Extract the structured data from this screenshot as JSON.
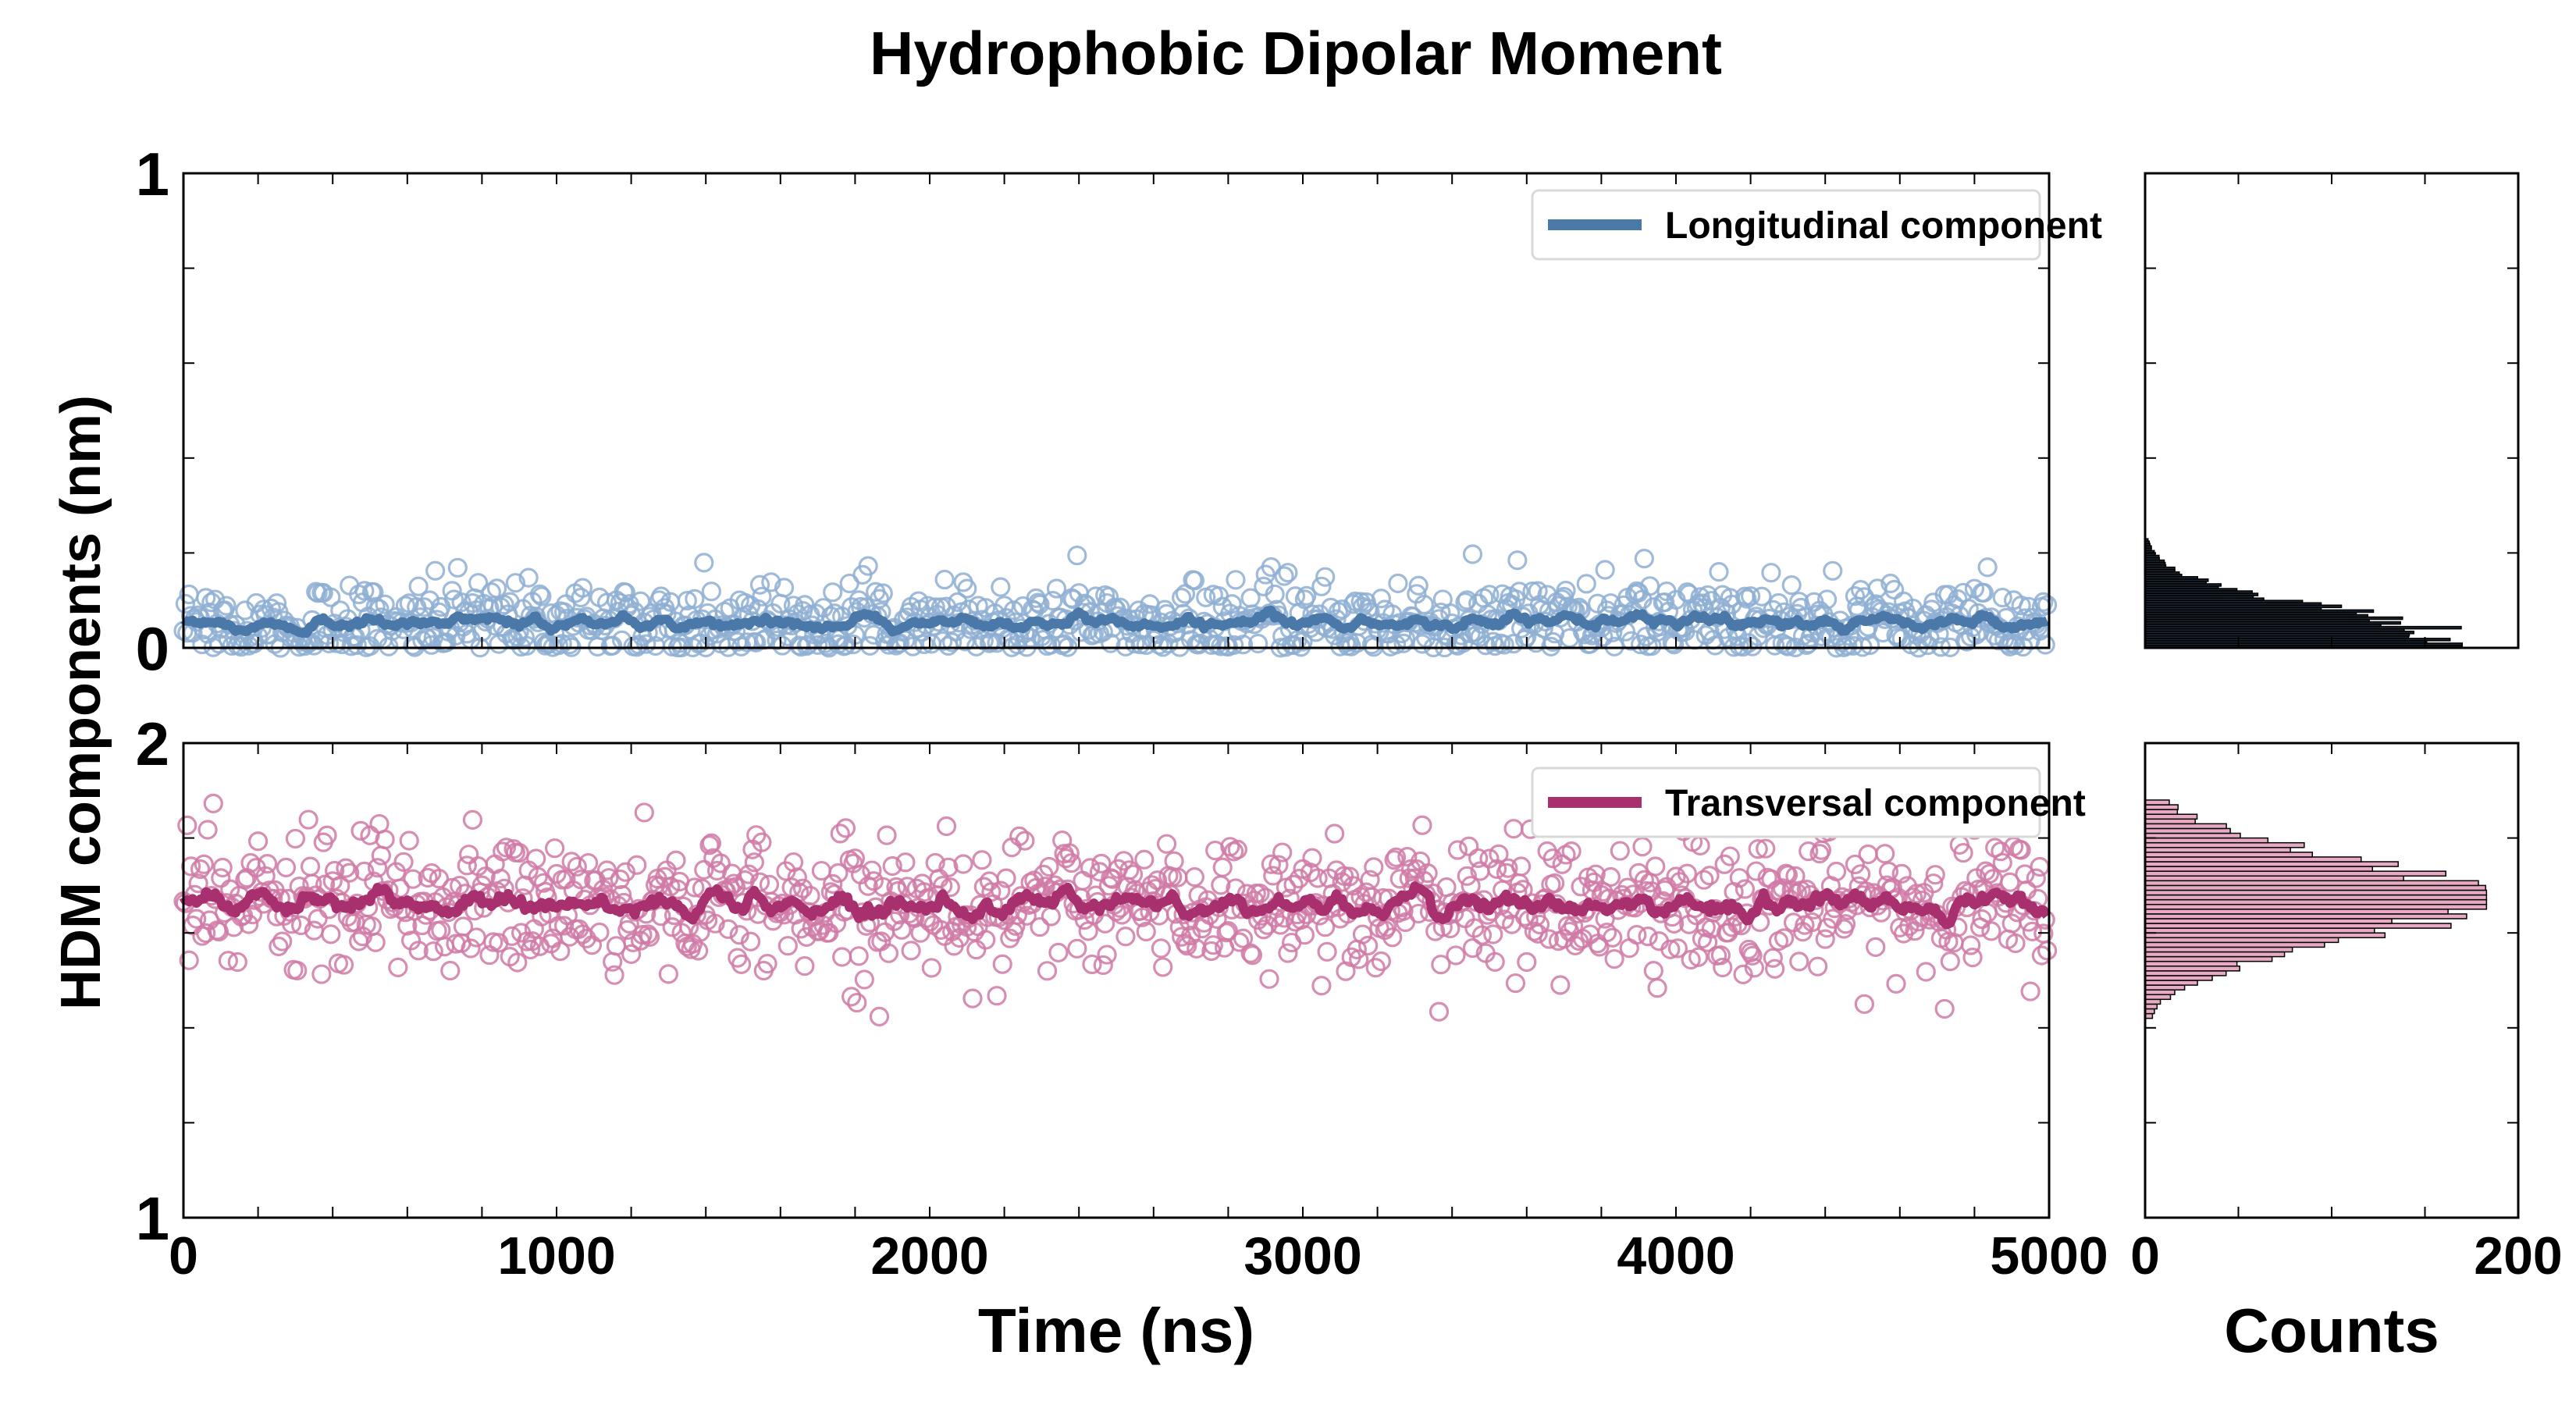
{
  "title": "Hydrophobic Dipolar Moment",
  "ylabel": "HDM components (nm)",
  "xlabel": "Time (ns)",
  "hist_xlabel": "Counts",
  "colors": {
    "longitudinal": "#4a78a8",
    "longitudinal_points": "#8eafd2",
    "transversal": "#a8306e",
    "transversal_points": "#d07aa6",
    "hist_long_fill": "#1c2733",
    "hist_trans_fill": "#e7a9c4"
  },
  "chart_data": [
    {
      "type": "scatter",
      "panel": "top-time-series",
      "series": [
        {
          "name": "Longitudinal component",
          "mean": 0.05,
          "scatter_sd": 0.045,
          "range": [
            0.0,
            0.24
          ]
        }
      ],
      "xlim": [
        0,
        5000
      ],
      "ylim": [
        0,
        1
      ],
      "xticks": [
        0,
        1000,
        2000,
        3000,
        4000,
        5000
      ],
      "yticks": [
        0,
        1
      ],
      "ytick_labels": [
        "0",
        "1"
      ],
      "legend": "top-right"
    },
    {
      "type": "scatter",
      "panel": "bottom-time-series",
      "series": [
        {
          "name": "Transversal component",
          "mean": 1.66,
          "scatter_sd": 0.07,
          "range": [
            1.42,
            1.88
          ]
        }
      ],
      "xlim": [
        0,
        5000
      ],
      "ylim": [
        1,
        2
      ],
      "xticks": [
        0,
        1000,
        2000,
        3000,
        4000,
        5000
      ],
      "xtick_labels": [
        "0",
        "1000",
        "2000",
        "3000",
        "4000",
        "5000"
      ],
      "yticks": [
        1,
        2
      ],
      "ytick_labels": [
        "1",
        "2"
      ],
      "legend": "top-right"
    },
    {
      "type": "bar",
      "panel": "top-histogram",
      "orientation": "horizontal",
      "bin_range": [
        0.0,
        0.23
      ],
      "peak_bin": 0.01,
      "peak_count": 170,
      "xlim": [
        0,
        200
      ],
      "ylim": [
        0,
        1
      ]
    },
    {
      "type": "bar",
      "panel": "bottom-histogram",
      "orientation": "horizontal",
      "bin_range": [
        1.42,
        1.88
      ],
      "peak_bin": 1.67,
      "peak_count": 183,
      "xlim": [
        0,
        200
      ],
      "ylim": [
        1,
        2
      ],
      "xticks": [
        0,
        200
      ],
      "xtick_labels": [
        "0",
        "200"
      ]
    }
  ]
}
